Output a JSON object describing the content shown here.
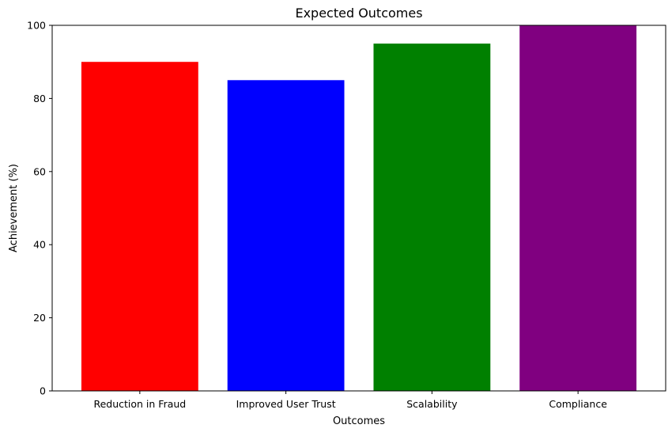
{
  "chart_data": {
    "type": "bar",
    "title": "Expected Outcomes",
    "xlabel": "Outcomes",
    "ylabel": "Achievement (%)",
    "categories": [
      "Reduction in Fraud",
      "Improved User Trust",
      "Scalability",
      "Compliance"
    ],
    "values": [
      90,
      85,
      95,
      100
    ],
    "colors": [
      "#ff0000",
      "#0000ff",
      "#008000",
      "#800080"
    ],
    "ylim": [
      0,
      100
    ],
    "yticks": [
      0,
      20,
      40,
      60,
      80,
      100
    ],
    "grid": false,
    "legend": false
  }
}
